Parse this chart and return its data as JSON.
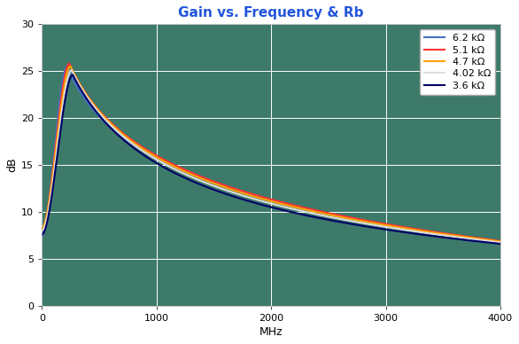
{
  "title": "Gain vs. Frequency & Rb",
  "title_color": "#2255DD",
  "xlabel": "MHz",
  "ylabel": "dB",
  "xlim": [
    0,
    4000
  ],
  "ylim": [
    0,
    30
  ],
  "xticks": [
    0,
    1000,
    2000,
    3000,
    4000
  ],
  "yticks": [
    0,
    5,
    10,
    15,
    20,
    25,
    30
  ],
  "plot_bg_color": "#3D7A6A",
  "grid_color": "#FFFFFF",
  "figure_bg": "#FFFFFF",
  "series": [
    {
      "label": "6.2 kΩ",
      "color": "#4472C4",
      "linewidth": 1.5,
      "peak_gain": 25.5,
      "start_gain": 7.5,
      "peak_freq": 220,
      "end_gain": 6.7,
      "spread": 0.0
    },
    {
      "label": "5.1 kΩ",
      "color": "#FF3333",
      "linewidth": 1.5,
      "peak_gain": 25.8,
      "start_gain": 8.2,
      "peak_freq": 240,
      "end_gain": 6.9,
      "spread": 0.15
    },
    {
      "label": "4.7 kΩ",
      "color": "#FFA500",
      "linewidth": 1.5,
      "peak_gain": 25.5,
      "start_gain": 8.3,
      "peak_freq": 250,
      "end_gain": 6.85,
      "spread": 0.25
    },
    {
      "label": "4.02 kΩ",
      "color": "#DDDDDD",
      "linewidth": 1.5,
      "peak_gain": 25.1,
      "start_gain": 8.0,
      "peak_freq": 260,
      "end_gain": 6.75,
      "spread": 0.35
    },
    {
      "label": "3.6 kΩ",
      "color": "#000066",
      "linewidth": 1.5,
      "peak_gain": 24.6,
      "start_gain": 7.6,
      "peak_freq": 270,
      "end_gain": 6.6,
      "spread": 0.5
    }
  ]
}
